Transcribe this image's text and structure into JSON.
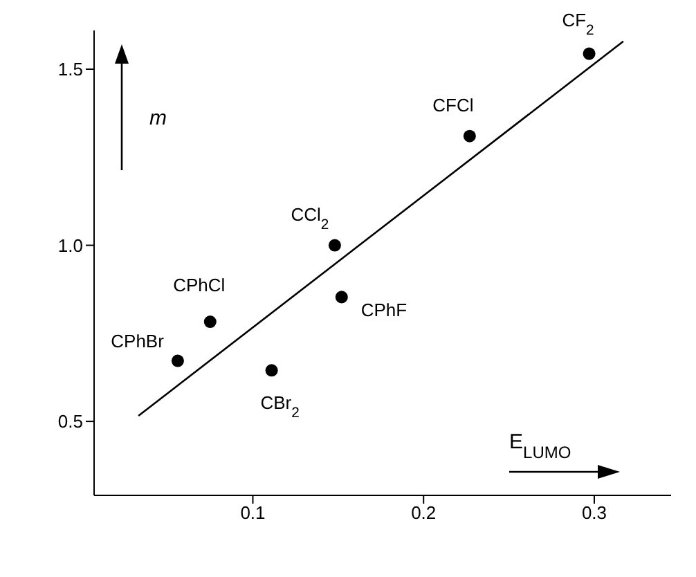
{
  "chart_data": {
    "type": "scatter",
    "xlabel": "E$_{LUMO}$",
    "ylabel": "m",
    "xlim": [
      0.007,
      0.345
    ],
    "xticks": [
      0.1,
      0.2,
      0.3
    ],
    "ylim": [
      0.29,
      1.61
    ],
    "yticks": [
      {
        "value": 0.5,
        "label": "0.5"
      },
      {
        "value": 1.0,
        "label": "1.0"
      },
      {
        "value": 1.5,
        "label": "1.5"
      }
    ],
    "grid": false,
    "legend": false,
    "marker": "circle",
    "series": [
      {
        "color": "#000000",
        "x": [
          0.297,
          0.227,
          0.148,
          0.152,
          0.075,
          0.056,
          0.111
        ],
        "values": [
          1.544,
          1.31,
          1.0,
          0.853,
          0.783,
          0.672,
          0.645
        ]
      },
      {
        "type": "line",
        "color": "#000000",
        "marker": "none",
        "line_style": "solid",
        "x": [
          0.033,
          0.317
        ],
        "values": [
          0.516,
          1.579
        ]
      }
    ],
    "annotations": [
      {
        "text": "CF$_{2}$",
        "x": 0.297,
        "y": 1.544
      },
      {
        "text": "CFCl",
        "x": 0.227,
        "y": 1.31
      },
      {
        "text": "CCl$_{2}$",
        "x": 0.148,
        "y": 1.0
      },
      {
        "text": "CPhF",
        "x": 0.152,
        "y": 0.853
      },
      {
        "text": "CPhCl",
        "x": 0.075,
        "y": 0.783
      },
      {
        "text": "CPhBr",
        "x": 0.056,
        "y": 0.672
      },
      {
        "text": "CBr$_{2}$",
        "x": 0.111,
        "y": 0.645
      }
    ]
  }
}
